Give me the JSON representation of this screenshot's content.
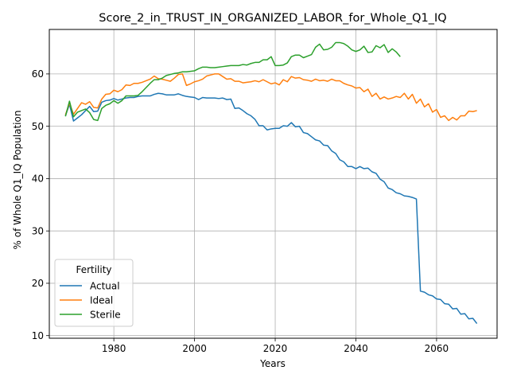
{
  "chart_data": {
    "type": "line",
    "title": "Score_2_in_TRUST_IN_ORGANIZED_LABOR_for_Whole_Q1_IQ",
    "xlabel": "Years",
    "ylabel": "% of Whole Q1_IQ Population",
    "xlim": [
      1964,
      2075
    ],
    "ylim": [
      9.5,
      68.5
    ],
    "xticks": [
      1980,
      2000,
      2020,
      2040,
      2060
    ],
    "yticks": [
      10,
      20,
      30,
      40,
      50,
      60
    ],
    "grid": true,
    "legend": {
      "title": "Fertility",
      "placement": "lower-left"
    },
    "colors": {
      "Actual": "#1f77b4",
      "Ideal": "#ff7f0e",
      "Sterile": "#2ca02c"
    },
    "series": [
      {
        "name": "Actual",
        "x": [
          1968,
          1969,
          1970,
          1971,
          1972,
          1973,
          1974,
          1975,
          1976,
          1977,
          1978,
          1979,
          1980,
          1981,
          1982,
          1983,
          1984,
          1985,
          1986,
          1987,
          1988,
          1989,
          1990,
          1991,
          1992,
          1993,
          1994,
          1995,
          1996,
          1997,
          1998,
          1999,
          2000,
          2001,
          2002,
          2003,
          2004,
          2005,
          2006,
          2007,
          2008,
          2009,
          2010,
          2011,
          2012,
          2013,
          2014,
          2015,
          2016,
          2017,
          2018,
          2019,
          2020,
          2021,
          2022,
          2023,
          2024,
          2025,
          2026,
          2027,
          2028,
          2029,
          2030,
          2031,
          2032,
          2033,
          2034,
          2035,
          2036,
          2037,
          2038,
          2039,
          2040,
          2041,
          2042,
          2043,
          2044,
          2045,
          2046,
          2047,
          2048,
          2049,
          2050,
          2051,
          2052,
          2053,
          2054,
          2055,
          2056,
          2057,
          2058,
          2059,
          2060,
          2061,
          2062,
          2063,
          2064,
          2065,
          2066,
          2067,
          2068,
          2069,
          2070
        ],
        "values": [
          52.0,
          54.2,
          51.0,
          51.6,
          52.2,
          53.0,
          53.8,
          52.8,
          52.9,
          54.6,
          54.9,
          55.0,
          55.3,
          55.0,
          55.2,
          55.4,
          55.5,
          55.5,
          55.7,
          55.8,
          55.8,
          55.8,
          56.1,
          56.3,
          56.2,
          56.0,
          56.0,
          56.0,
          56.2,
          55.9,
          55.7,
          55.6,
          55.5,
          55.1,
          55.5,
          55.4,
          55.4,
          55.4,
          55.3,
          55.4,
          55.1,
          55.2,
          53.4,
          53.5,
          53.0,
          52.4,
          52.0,
          51.3,
          50.1,
          50.1,
          49.3,
          49.5,
          49.6,
          49.6,
          50.1,
          50.0,
          50.7,
          49.9,
          50.0,
          48.8,
          48.6,
          48.0,
          47.4,
          47.2,
          46.4,
          46.3,
          45.3,
          44.8,
          43.6,
          43.2,
          42.3,
          42.3,
          41.9,
          42.3,
          41.9,
          42.0,
          41.3,
          41.0,
          39.9,
          39.4,
          38.2,
          37.9,
          37.3,
          37.1,
          36.7,
          36.6,
          36.4,
          36.1,
          18.5,
          18.3,
          17.8,
          17.6,
          17.0,
          16.9,
          16.1,
          16.0,
          15.1,
          15.2,
          14.1,
          14.2,
          13.2,
          13.3,
          12.3
        ]
      },
      {
        "name": "Ideal",
        "x": [
          1968,
          1969,
          1970,
          1971,
          1972,
          1973,
          1974,
          1975,
          1976,
          1977,
          1978,
          1979,
          1980,
          1981,
          1982,
          1983,
          1984,
          1985,
          1986,
          1987,
          1988,
          1989,
          1990,
          1991,
          1992,
          1993,
          1994,
          1995,
          1996,
          1997,
          1998,
          1999,
          2000,
          2001,
          2002,
          2003,
          2004,
          2005,
          2006,
          2007,
          2008,
          2009,
          2010,
          2011,
          2012,
          2013,
          2014,
          2015,
          2016,
          2017,
          2018,
          2019,
          2020,
          2021,
          2022,
          2023,
          2024,
          2025,
          2026,
          2027,
          2028,
          2029,
          2030,
          2031,
          2032,
          2033,
          2034,
          2035,
          2036,
          2037,
          2038,
          2039,
          2040,
          2041,
          2042,
          2043,
          2044,
          2045,
          2046,
          2047,
          2048,
          2049,
          2050,
          2051,
          2052,
          2053,
          2054,
          2055,
          2056,
          2057,
          2058,
          2059,
          2060,
          2061,
          2062,
          2063,
          2064,
          2065,
          2066,
          2067,
          2068,
          2069,
          2070
        ],
        "values": [
          52.2,
          54.4,
          52.3,
          53.4,
          54.5,
          54.2,
          54.7,
          53.6,
          53.5,
          55.2,
          56.1,
          56.2,
          56.9,
          56.6,
          57.0,
          57.9,
          57.8,
          58.2,
          58.2,
          58.4,
          58.7,
          59.0,
          59.6,
          59.1,
          59.0,
          58.8,
          58.6,
          59.2,
          59.9,
          60.0,
          57.8,
          58.1,
          58.5,
          58.7,
          59.0,
          59.6,
          59.8,
          60.0,
          60.0,
          59.5,
          59.0,
          59.1,
          58.6,
          58.6,
          58.3,
          58.4,
          58.5,
          58.7,
          58.5,
          58.9,
          58.5,
          58.1,
          58.3,
          57.9,
          58.9,
          58.5,
          59.5,
          59.2,
          59.3,
          58.9,
          58.8,
          58.6,
          59.0,
          58.7,
          58.8,
          58.6,
          59.0,
          58.7,
          58.7,
          58.2,
          57.9,
          57.7,
          57.3,
          57.4,
          56.6,
          57.1,
          55.7,
          56.3,
          55.2,
          55.6,
          55.2,
          55.4,
          55.7,
          55.5,
          56.3,
          55.2,
          56.1,
          54.4,
          55.2,
          53.7,
          54.3,
          52.7,
          53.2,
          51.7,
          52.0,
          51.1,
          51.7,
          51.2,
          52.0,
          52.0,
          52.9,
          52.8,
          53.0
        ]
      },
      {
        "name": "Sterile",
        "x": [
          1968,
          1969,
          1970,
          1971,
          1972,
          1973,
          1974,
          1975,
          1976,
          1977,
          1978,
          1979,
          1980,
          1981,
          1982,
          1983,
          1984,
          1985,
          1986,
          1987,
          1988,
          1989,
          1990,
          1991,
          1992,
          1993,
          1994,
          1995,
          1996,
          1997,
          1998,
          1999,
          2000,
          2001,
          2002,
          2003,
          2004,
          2005,
          2006,
          2007,
          2008,
          2009,
          2010,
          2011,
          2012,
          2013,
          2014,
          2015,
          2016,
          2017,
          2018,
          2019,
          2020,
          2021,
          2022,
          2023,
          2024,
          2025,
          2026,
          2027,
          2028,
          2029,
          2030,
          2031,
          2032,
          2033,
          2034,
          2035,
          2036,
          2037,
          2038,
          2039,
          2040,
          2041,
          2042,
          2043,
          2044,
          2045,
          2046,
          2047,
          2048,
          2049,
          2050,
          2051
        ],
        "values": [
          51.9,
          54.8,
          51.8,
          52.7,
          53.0,
          53.3,
          52.6,
          51.3,
          51.1,
          53.4,
          54.0,
          54.3,
          54.9,
          54.4,
          54.9,
          55.8,
          55.8,
          55.8,
          55.9,
          56.6,
          57.4,
          58.2,
          58.9,
          58.9,
          59.2,
          59.7,
          59.9,
          60.1,
          60.2,
          60.4,
          60.4,
          60.5,
          60.6,
          61.0,
          61.3,
          61.3,
          61.2,
          61.2,
          61.3,
          61.4,
          61.5,
          61.6,
          61.6,
          61.6,
          61.8,
          61.7,
          62.0,
          62.2,
          62.2,
          62.7,
          62.7,
          63.3,
          61.6,
          61.6,
          61.7,
          62.1,
          63.3,
          63.6,
          63.6,
          63.1,
          63.4,
          63.7,
          65.1,
          65.7,
          64.6,
          64.7,
          65.1,
          66.0,
          66.0,
          65.8,
          65.3,
          64.6,
          64.3,
          64.6,
          65.3,
          64.1,
          64.2,
          65.4,
          65.0,
          65.6,
          64.1,
          64.8,
          64.2,
          63.3
        ]
      }
    ]
  }
}
